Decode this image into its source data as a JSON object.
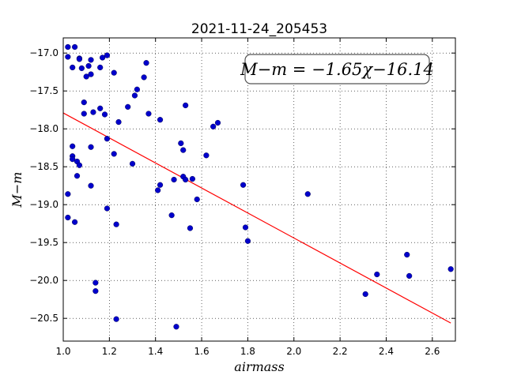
{
  "chart_data": {
    "type": "scatter",
    "title": "2021-11-24_205453",
    "xlabel": "airmass",
    "ylabel": "M−m",
    "xlim": [
      1.0,
      2.7
    ],
    "ylim": [
      -20.8,
      -16.8
    ],
    "x_ticks": [
      1.0,
      1.2,
      1.4,
      1.6,
      1.8,
      2.0,
      2.2,
      2.4,
      2.6
    ],
    "x_tick_labels": [
      "1.0",
      "1.2",
      "1.4",
      "1.6",
      "1.8",
      "2.0",
      "2.2",
      "2.4",
      "2.6"
    ],
    "y_ticks": [
      -17.0,
      -17.5,
      -18.0,
      -18.5,
      -19.0,
      -19.5,
      -20.0,
      -20.5
    ],
    "y_tick_labels": [
      "−17.0",
      "−17.5",
      "−18.0",
      "−18.5",
      "−19.0",
      "−19.5",
      "−20.0",
      "−20.5"
    ],
    "grid": true,
    "annotation": "M−m = −1.65χ−16.14",
    "fit_line": {
      "slope": -1.65,
      "intercept": -16.14,
      "x_range": [
        1.0,
        2.68
      ],
      "color": "#ff0000"
    },
    "point_color": "#0000cc",
    "points": [
      {
        "x": 1.02,
        "y": -16.92
      },
      {
        "x": 1.05,
        "y": -16.92
      },
      {
        "x": 1.02,
        "y": -17.05
      },
      {
        "x": 1.07,
        "y": -17.07
      },
      {
        "x": 1.07,
        "y": -17.08
      },
      {
        "x": 1.12,
        "y": -17.09
      },
      {
        "x": 1.04,
        "y": -17.19
      },
      {
        "x": 1.08,
        "y": -17.2
      },
      {
        "x": 1.11,
        "y": -17.17
      },
      {
        "x": 1.1,
        "y": -17.31
      },
      {
        "x": 1.12,
        "y": -17.28
      },
      {
        "x": 1.17,
        "y": -17.06
      },
      {
        "x": 1.19,
        "y": -17.03
      },
      {
        "x": 1.16,
        "y": -17.19
      },
      {
        "x": 1.22,
        "y": -17.26
      },
      {
        "x": 1.09,
        "y": -17.65
      },
      {
        "x": 1.13,
        "y": -17.78
      },
      {
        "x": 1.16,
        "y": -17.73
      },
      {
        "x": 1.09,
        "y": -17.8
      },
      {
        "x": 1.18,
        "y": -17.81
      },
      {
        "x": 1.24,
        "y": -17.91
      },
      {
        "x": 1.28,
        "y": -17.71
      },
      {
        "x": 1.31,
        "y": -17.56
      },
      {
        "x": 1.32,
        "y": -17.48
      },
      {
        "x": 1.35,
        "y": -17.32
      },
      {
        "x": 1.36,
        "y": -17.13
      },
      {
        "x": 1.37,
        "y": -17.8
      },
      {
        "x": 1.42,
        "y": -17.88
      },
      {
        "x": 1.53,
        "y": -17.69
      },
      {
        "x": 1.65,
        "y": -17.97
      },
      {
        "x": 1.67,
        "y": -17.92
      },
      {
        "x": 1.19,
        "y": -18.13
      },
      {
        "x": 1.04,
        "y": -18.23
      },
      {
        "x": 1.12,
        "y": -18.24
      },
      {
        "x": 1.22,
        "y": -18.33
      },
      {
        "x": 1.04,
        "y": -18.36
      },
      {
        "x": 1.04,
        "y": -18.4
      },
      {
        "x": 1.06,
        "y": -18.43
      },
      {
        "x": 1.07,
        "y": -18.48
      },
      {
        "x": 1.3,
        "y": -18.46
      },
      {
        "x": 1.51,
        "y": -18.19
      },
      {
        "x": 1.52,
        "y": -18.28
      },
      {
        "x": 1.62,
        "y": -18.35
      },
      {
        "x": 1.06,
        "y": -18.62
      },
      {
        "x": 1.12,
        "y": -18.75
      },
      {
        "x": 1.02,
        "y": -18.86
      },
      {
        "x": 1.42,
        "y": -18.74
      },
      {
        "x": 1.41,
        "y": -18.81
      },
      {
        "x": 1.48,
        "y": -18.67
      },
      {
        "x": 1.52,
        "y": -18.63
      },
      {
        "x": 1.53,
        "y": -18.67
      },
      {
        "x": 1.56,
        "y": -18.66
      },
      {
        "x": 1.58,
        "y": -18.93
      },
      {
        "x": 1.78,
        "y": -18.74
      },
      {
        "x": 2.06,
        "y": -18.86
      },
      {
        "x": 1.19,
        "y": -19.05
      },
      {
        "x": 1.02,
        "y": -19.17
      },
      {
        "x": 1.05,
        "y": -19.23
      },
      {
        "x": 1.23,
        "y": -19.26
      },
      {
        "x": 1.47,
        "y": -19.14
      },
      {
        "x": 1.55,
        "y": -19.31
      },
      {
        "x": 1.79,
        "y": -19.3
      },
      {
        "x": 1.8,
        "y": -19.48
      },
      {
        "x": 2.49,
        "y": -19.66
      },
      {
        "x": 2.36,
        "y": -19.92
      },
      {
        "x": 2.5,
        "y": -19.94
      },
      {
        "x": 2.68,
        "y": -19.85
      },
      {
        "x": 1.14,
        "y": -20.03
      },
      {
        "x": 1.14,
        "y": -20.14
      },
      {
        "x": 2.31,
        "y": -20.18
      },
      {
        "x": 1.23,
        "y": -20.51
      },
      {
        "x": 1.49,
        "y": -20.61
      }
    ]
  }
}
